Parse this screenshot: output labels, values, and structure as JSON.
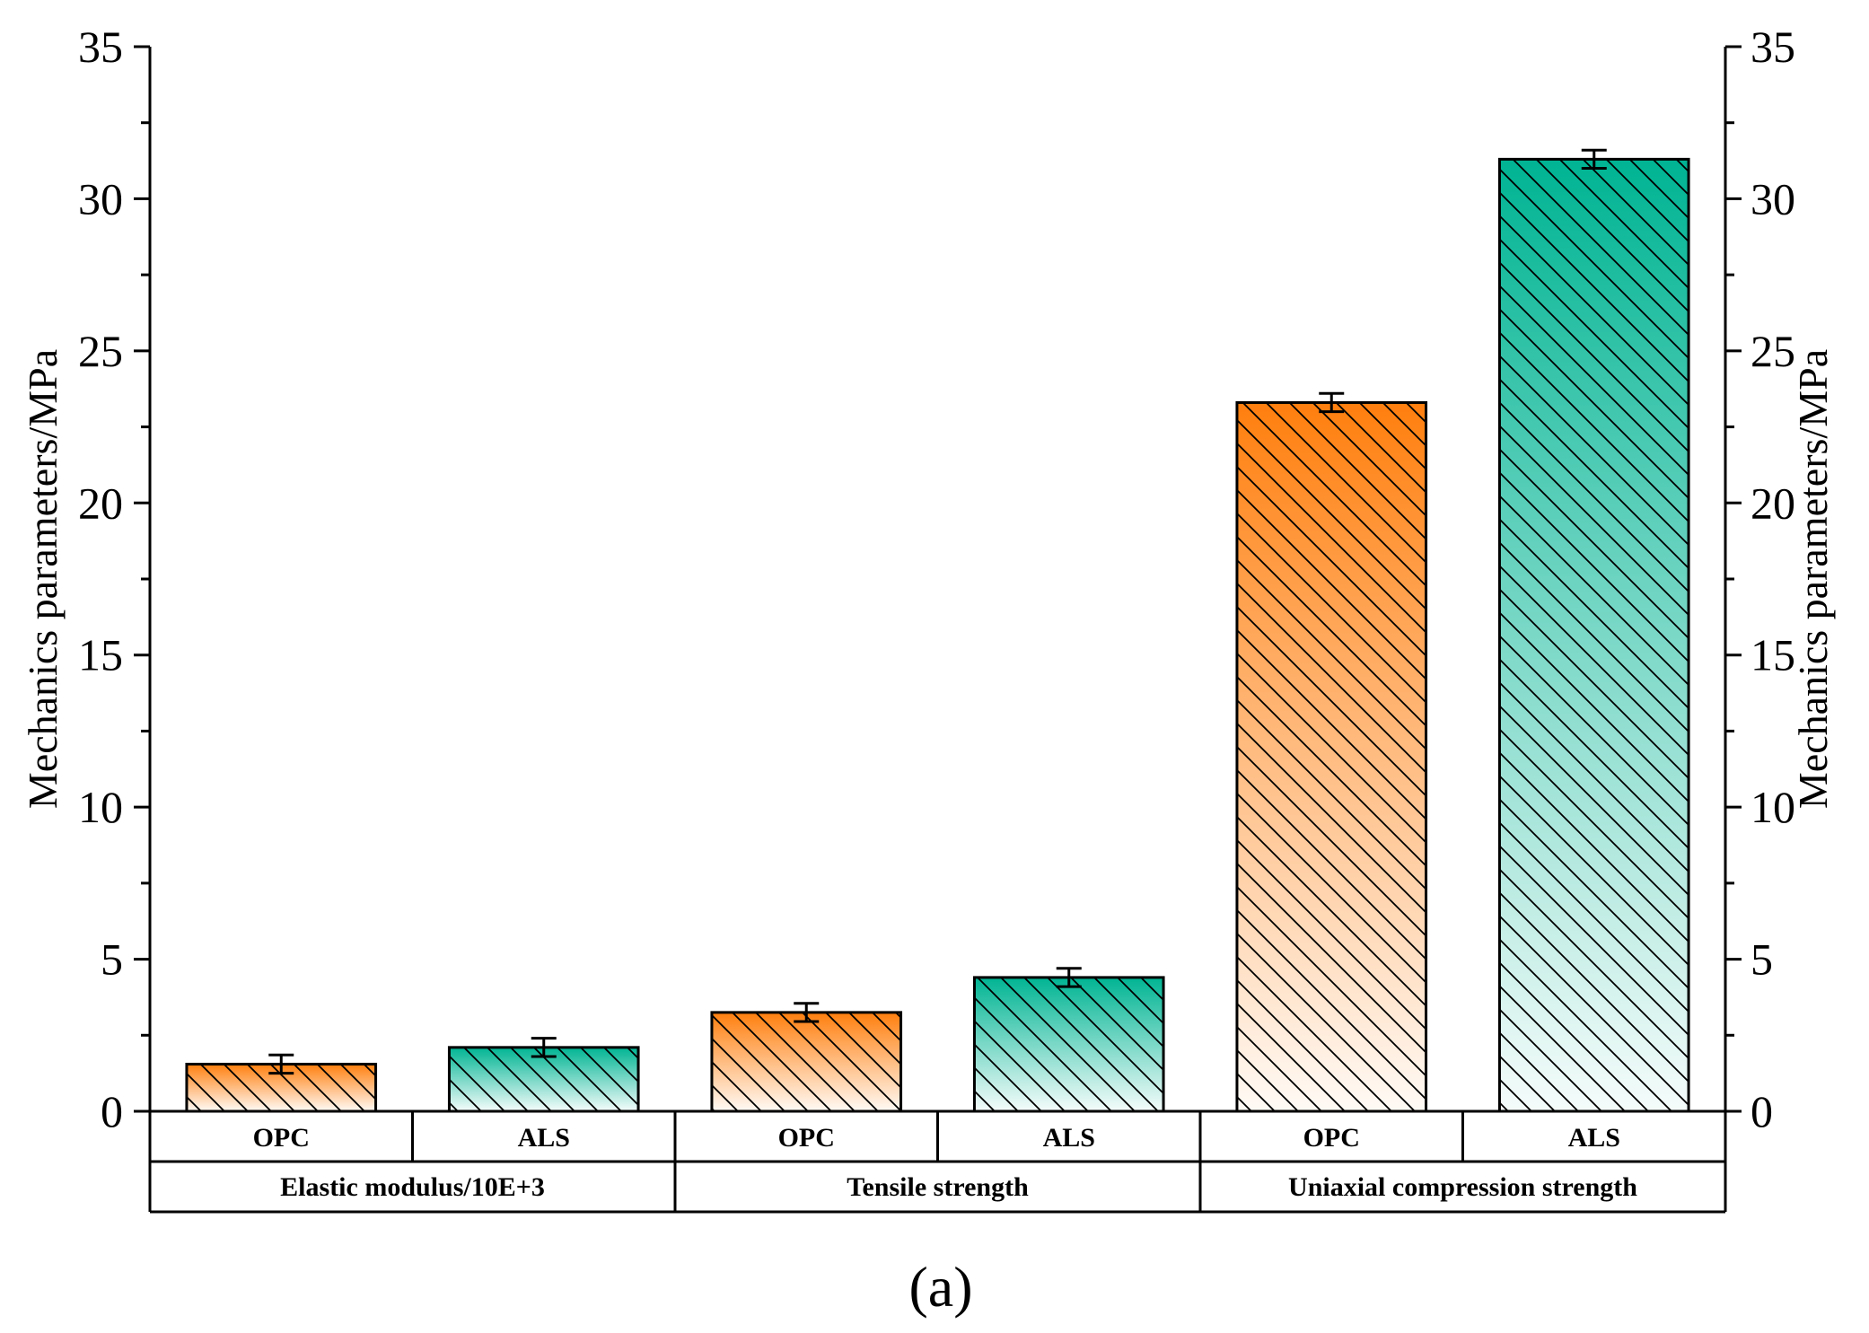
{
  "chart_data": {
    "type": "bar",
    "ylabel": "Mechanics parameters/MPa",
    "ylim": [
      0,
      35
    ],
    "yticks": [
      "0",
      "5",
      "10",
      "15",
      "20",
      "25",
      "30",
      "35"
    ],
    "groups": [
      {
        "name": "Elastic modulus/10E+3",
        "bars": [
          {
            "label": "OPC",
            "value": 1.55,
            "error": 0.3
          },
          {
            "label": "ALS",
            "value": 2.1,
            "error": 0.3
          }
        ]
      },
      {
        "name": "Tensile strength",
        "bars": [
          {
            "label": "OPC",
            "value": 3.25,
            "error": 0.3
          },
          {
            "label": "ALS",
            "value": 4.4,
            "error": 0.3
          }
        ]
      },
      {
        "name": "Uniaxial compression strength",
        "bars": [
          {
            "label": "OPC",
            "value": 23.3,
            "error": 0.3
          },
          {
            "label": "ALS",
            "value": 31.3,
            "error": 0.3
          }
        ]
      }
    ],
    "colors": {
      "OPC": "#ff7f0e",
      "ALS": "#00b493"
    },
    "panel_label": "(a)"
  }
}
